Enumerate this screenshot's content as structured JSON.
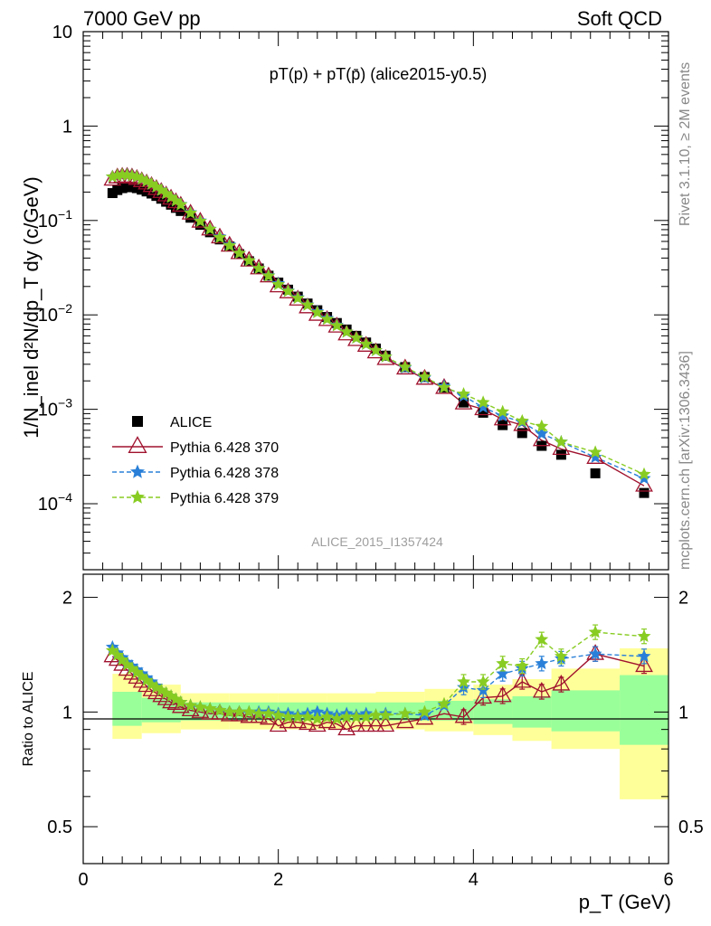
{
  "header": {
    "left": "7000 GeV pp",
    "right": "Soft QCD"
  },
  "side": {
    "rivet": "Rivet 3.1.10, ≥ 2M events",
    "mcplots": "mcplots.cern.ch [arXiv:1306.3436]"
  },
  "chart_data": [
    {
      "type": "scatter",
      "title": "pT(p) + pT(p̄) (alice2015-y0.5)",
      "analysis_label": "ALICE_2015_I1357424",
      "ylabel": "1/N_inel d²N/dp_T dy (c/GeV)",
      "xlabel": "",
      "yscale": "log",
      "xlim": [
        0,
        6
      ],
      "ylim": [
        2e-05,
        10
      ],
      "yticks": [
        "10",
        "1",
        "10^-1",
        "10^-2",
        "10^-3",
        "10^-4"
      ],
      "legend": [
        "ALICE",
        "Pythia 6.428 370",
        "Pythia 6.428 378",
        "Pythia 6.428 379"
      ],
      "legend_position": "lower-left",
      "x": [
        0.3,
        0.35,
        0.4,
        0.45,
        0.5,
        0.55,
        0.6,
        0.65,
        0.7,
        0.75,
        0.8,
        0.85,
        0.9,
        0.95,
        1.0,
        1.1,
        1.2,
        1.3,
        1.4,
        1.5,
        1.6,
        1.7,
        1.8,
        1.9,
        2.0,
        2.1,
        2.2,
        2.3,
        2.4,
        2.5,
        2.6,
        2.7,
        2.8,
        2.9,
        3.0,
        3.1,
        3.3,
        3.5,
        3.7,
        3.9,
        4.1,
        4.3,
        4.5,
        4.7,
        4.9,
        5.25,
        5.75
      ],
      "series": [
        {
          "name": "ALICE",
          "values": [
            0.195,
            0.21,
            0.22,
            0.225,
            0.225,
            0.22,
            0.212,
            0.203,
            0.193,
            0.182,
            0.17,
            0.158,
            0.147,
            0.136,
            0.126,
            0.107,
            0.09,
            0.075,
            0.063,
            0.053,
            0.044,
            0.037,
            0.031,
            0.026,
            0.022,
            0.0185,
            0.0156,
            0.0132,
            0.0112,
            0.0095,
            0.0082,
            0.007,
            0.006,
            0.0051,
            0.0044,
            0.0037,
            0.0028,
            0.0022,
            0.0017,
            0.00118,
            0.00092,
            0.00068,
            0.00056,
            0.00041,
            0.00033,
            0.00021,
            0.00013
          ]
        },
        {
          "name": "Pythia 6.428 370",
          "values": [
            0.27,
            0.285,
            0.29,
            0.29,
            0.285,
            0.275,
            0.26,
            0.246,
            0.231,
            0.215,
            0.2,
            0.184,
            0.17,
            0.156,
            0.143,
            0.118,
            0.097,
            0.08,
            0.066,
            0.054,
            0.045,
            0.0375,
            0.031,
            0.0255,
            0.02,
            0.0173,
            0.0145,
            0.012,
            0.01,
            0.0088,
            0.0075,
            0.0062,
            0.0054,
            0.0047,
            0.004,
            0.0034,
            0.0027,
            0.0021,
            0.00168,
            0.00115,
            0.001,
            0.00078,
            0.00068,
            0.00047,
            0.00038,
            0.000305,
            0.000155
          ]
        },
        {
          "name": "Pythia 6.428 378",
          "values": [
            0.29,
            0.3,
            0.305,
            0.305,
            0.3,
            0.29,
            0.275,
            0.26,
            0.243,
            0.226,
            0.21,
            0.193,
            0.177,
            0.162,
            0.148,
            0.121,
            0.099,
            0.081,
            0.067,
            0.055,
            0.045,
            0.0375,
            0.031,
            0.026,
            0.0215,
            0.018,
            0.0152,
            0.0128,
            0.0108,
            0.0092,
            0.0078,
            0.0066,
            0.0057,
            0.0049,
            0.0042,
            0.0036,
            0.00275,
            0.00215,
            0.00175,
            0.00138,
            0.00105,
            0.00085,
            0.00073,
            0.00055,
            0.00045,
            0.00031,
            0.000185
          ]
        },
        {
          "name": "Pythia 6.428 379",
          "values": [
            0.29,
            0.3,
            0.305,
            0.303,
            0.298,
            0.29,
            0.275,
            0.26,
            0.243,
            0.226,
            0.209,
            0.192,
            0.176,
            0.161,
            0.147,
            0.12,
            0.098,
            0.081,
            0.066,
            0.054,
            0.045,
            0.0375,
            0.031,
            0.0258,
            0.021,
            0.0178,
            0.015,
            0.0127,
            0.0106,
            0.009,
            0.0077,
            0.0066,
            0.0057,
            0.0049,
            0.0042,
            0.0036,
            0.0028,
            0.0022,
            0.0017,
            0.00145,
            0.00118,
            0.00094,
            0.00075,
            0.00066,
            0.00045,
            0.00035,
            0.000205
          ]
        }
      ]
    },
    {
      "type": "scatter",
      "title": "",
      "xlabel": "p_T (GeV)",
      "ylabel": "Ratio to ALICE",
      "xlim": [
        0,
        6
      ],
      "ylim": [
        0.4,
        2.3
      ],
      "xticks": [
        "0",
        "2",
        "4",
        "6"
      ],
      "yticks": [
        "0.5",
        "1",
        "2"
      ],
      "x": [
        0.3,
        0.35,
        0.4,
        0.45,
        0.5,
        0.55,
        0.6,
        0.65,
        0.7,
        0.75,
        0.8,
        0.85,
        0.9,
        0.95,
        1.0,
        1.1,
        1.2,
        1.3,
        1.4,
        1.5,
        1.6,
        1.7,
        1.8,
        1.9,
        2.0,
        2.1,
        2.2,
        2.3,
        2.4,
        2.5,
        2.6,
        2.7,
        2.8,
        2.9,
        3.0,
        3.1,
        3.3,
        3.5,
        3.7,
        3.9,
        4.1,
        4.3,
        4.5,
        4.7,
        4.9,
        5.25,
        5.75
      ],
      "bands": {
        "edges": [
          0.3,
          0.6,
          1.0,
          1.5,
          2.0,
          2.5,
          3.0,
          3.5,
          4.0,
          4.4,
          4.8,
          5.5,
          6.0
        ],
        "yellow_low": [
          0.85,
          0.88,
          0.9,
          0.9,
          0.9,
          0.9,
          0.9,
          0.89,
          0.87,
          0.84,
          0.8,
          0.59
        ],
        "yellow_high": [
          1.26,
          1.18,
          1.12,
          1.12,
          1.12,
          1.12,
          1.13,
          1.15,
          1.18,
          1.22,
          1.3,
          1.47
        ],
        "green_low": [
          0.92,
          0.94,
          0.95,
          0.95,
          0.95,
          0.95,
          0.95,
          0.95,
          0.93,
          0.91,
          0.89,
          0.82
        ],
        "green_high": [
          1.13,
          1.09,
          1.06,
          1.06,
          1.06,
          1.06,
          1.06,
          1.07,
          1.08,
          1.1,
          1.14,
          1.25
        ]
      },
      "series": [
        {
          "name": "Pythia 6.428 370",
          "values": [
            1.4,
            1.37,
            1.33,
            1.29,
            1.26,
            1.23,
            1.2,
            1.17,
            1.14,
            1.12,
            1.1,
            1.08,
            1.06,
            1.05,
            1.03,
            1.01,
            1.0,
            0.99,
            0.99,
            0.98,
            0.98,
            0.97,
            0.97,
            0.96,
            0.92,
            0.94,
            0.94,
            0.93,
            0.92,
            0.94,
            0.93,
            0.9,
            0.92,
            0.92,
            0.92,
            0.92,
            0.94,
            0.96,
            0.99,
            0.97,
            1.09,
            1.1,
            1.2,
            1.13,
            1.18,
            1.42,
            1.32
          ]
        },
        {
          "name": "Pythia 6.428 378",
          "values": [
            1.48,
            1.43,
            1.39,
            1.35,
            1.32,
            1.29,
            1.26,
            1.23,
            1.2,
            1.17,
            1.14,
            1.12,
            1.1,
            1.08,
            1.06,
            1.04,
            1.03,
            1.02,
            1.01,
            1.0,
            1.0,
            1.0,
            1.0,
            1.0,
            0.99,
            0.99,
            0.98,
            0.99,
            1.0,
            0.99,
            0.98,
            0.99,
            0.98,
            0.99,
            0.98,
            0.99,
            0.99,
            0.98,
            1.04,
            1.16,
            1.14,
            1.26,
            1.3,
            1.34,
            1.38,
            1.42,
            1.4
          ]
        },
        {
          "name": "Pythia 6.428 379",
          "values": [
            1.45,
            1.41,
            1.37,
            1.33,
            1.3,
            1.27,
            1.24,
            1.21,
            1.18,
            1.16,
            1.14,
            1.12,
            1.1,
            1.08,
            1.06,
            1.04,
            1.03,
            1.02,
            1.01,
            1.0,
            1.0,
            1.0,
            0.99,
            0.99,
            0.98,
            0.97,
            0.97,
            0.97,
            0.96,
            0.97,
            0.96,
            0.97,
            0.97,
            0.97,
            0.98,
            0.98,
            0.99,
            1.0,
            1.05,
            1.2,
            1.2,
            1.34,
            1.32,
            1.55,
            1.4,
            1.62,
            1.58
          ]
        }
      ]
    }
  ],
  "colors": {
    "alice": "#000000",
    "p370": "#a0122e",
    "p378": "#2a80d8",
    "p379": "#88cc22",
    "band_yellow": "#ffff99",
    "band_green": "#99ff99",
    "side_text": "#888888",
    "label_text": "#9e9e9e"
  }
}
